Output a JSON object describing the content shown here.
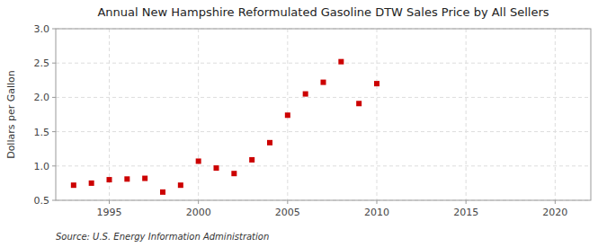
{
  "chart_data": {
    "type": "scatter",
    "title": "Annual New Hampshire Reformulated Gasoline DTW Sales Price by All Sellers",
    "ylabel": "Dollars per Gallon",
    "annotations": [
      "Source: U.S. Energy Information Administration"
    ],
    "x": [
      1993,
      1994,
      1995,
      1996,
      1997,
      1998,
      1999,
      2000,
      2001,
      2002,
      2003,
      2004,
      2005,
      2006,
      2007,
      2008,
      2009,
      2010
    ],
    "values": [
      0.72,
      0.75,
      0.8,
      0.81,
      0.82,
      0.62,
      0.72,
      1.07,
      0.97,
      0.89,
      1.09,
      1.34,
      1.74,
      2.05,
      2.22,
      2.52,
      1.91,
      2.2
    ],
    "color": "#cc0000",
    "marker": "square",
    "xlim": [
      1992,
      2022
    ],
    "ylim": [
      0.5,
      3.0
    ],
    "xticks": [
      1995,
      2000,
      2005,
      2010,
      2015,
      2020
    ],
    "yticks": [
      0.5,
      {
        "value": 1.0,
        "label": "1.0"
      },
      1.5,
      {
        "value": 2.0,
        "label": "2.0"
      },
      2.5,
      {
        "value": 3.0,
        "label": "3.0"
      }
    ],
    "grid": true
  }
}
